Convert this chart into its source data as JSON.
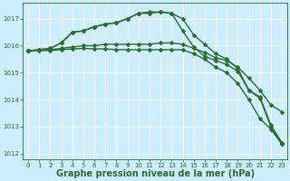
{
  "background_color": "#cceeff",
  "grid_color": "#ffffff",
  "line_color": "#2d6a2d",
  "xlabel": "Graphe pression niveau de la mer (hPa)",
  "xlabel_fontsize": 7,
  "ylim": [
    1011.8,
    1017.6
  ],
  "xlim": [
    -0.5,
    23.5
  ],
  "yticks": [
    1012,
    1013,
    1014,
    1015,
    1016,
    1017
  ],
  "xticks": [
    0,
    1,
    2,
    3,
    4,
    5,
    6,
    7,
    8,
    9,
    10,
    11,
    12,
    13,
    14,
    15,
    16,
    17,
    18,
    19,
    20,
    21,
    22,
    23
  ],
  "series": [
    {
      "x": [
        0,
        1,
        2,
        3,
        4,
        5,
        6,
        7,
        8,
        9,
        10,
        11,
        12,
        13,
        14,
        15,
        16,
        17,
        18,
        19,
        20,
        21,
        22,
        23
      ],
      "y": [
        1015.8,
        1015.85,
        1015.9,
        1016.1,
        1016.5,
        1016.55,
        1016.7,
        1016.8,
        1016.85,
        1017.0,
        1017.2,
        1017.2,
        1017.25,
        1017.2,
        1017.0,
        1016.4,
        1016.05,
        1015.7,
        1015.5,
        1015.15,
        1014.35,
        1014.1,
        1013.05,
        1012.4
      ],
      "marker": "D",
      "markersize": 2.5,
      "linewidth": 1.0
    },
    {
      "x": [
        0,
        1,
        2,
        3,
        4,
        5,
        6,
        7,
        8,
        9,
        10,
        11,
        12,
        13,
        14,
        15,
        16,
        17,
        18,
        19,
        20,
        21,
        22,
        23
      ],
      "y": [
        1015.8,
        1015.85,
        1015.9,
        1016.1,
        1016.5,
        1016.55,
        1016.7,
        1016.8,
        1016.85,
        1017.0,
        1017.2,
        1017.25,
        1017.25,
        1017.2,
        1016.55,
        1015.95,
        1015.6,
        1015.45,
        1015.3,
        1015.05,
        1014.35,
        1014.05,
        1013.0,
        1012.35
      ],
      "marker": "D",
      "markersize": 2.5,
      "linewidth": 1.0
    },
    {
      "x": [
        0,
        1,
        2,
        3,
        4,
        5,
        6,
        7,
        8,
        9,
        10,
        11,
        12,
        13,
        14,
        15,
        16,
        17,
        18,
        19,
        20,
        21,
        22,
        23
      ],
      "y": [
        1015.8,
        1015.85,
        1015.85,
        1015.9,
        1015.95,
        1016.0,
        1016.0,
        1016.05,
        1016.05,
        1016.05,
        1016.05,
        1016.05,
        1016.1,
        1016.1,
        1016.05,
        1015.9,
        1015.75,
        1015.55,
        1015.45,
        1015.2,
        1014.8,
        1014.35,
        1013.8,
        1013.55
      ],
      "marker": "D",
      "markersize": 2.5,
      "linewidth": 1.0
    },
    {
      "x": [
        0,
        1,
        2,
        3,
        4,
        5,
        6,
        7,
        8,
        9,
        10,
        11,
        12,
        13,
        14,
        15,
        16,
        17,
        18,
        19,
        20,
        21,
        22,
        23
      ],
      "y": [
        1015.8,
        1015.82,
        1015.82,
        1015.85,
        1015.88,
        1015.9,
        1015.88,
        1015.88,
        1015.85,
        1015.85,
        1015.85,
        1015.85,
        1015.85,
        1015.85,
        1015.85,
        1015.7,
        1015.5,
        1015.2,
        1015.0,
        1014.6,
        1014.0,
        1013.3,
        1012.9,
        1012.35
      ],
      "marker": "D",
      "markersize": 2.5,
      "linewidth": 1.0
    }
  ]
}
